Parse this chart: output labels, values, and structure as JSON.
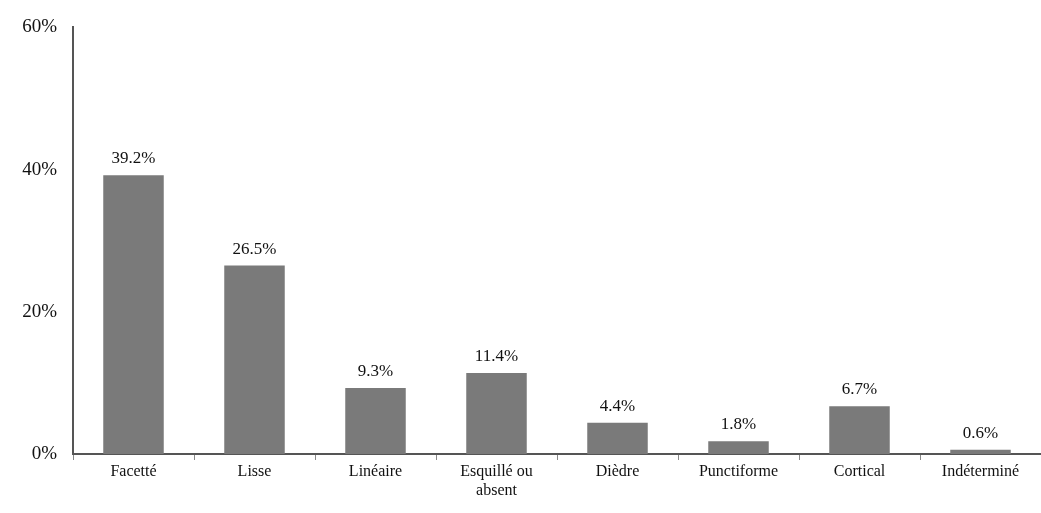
{
  "chart_data": {
    "type": "bar",
    "categories": [
      "Facetté",
      "Lisse",
      "Linéaire",
      "Esquillé ou absent",
      "Dièdre",
      "Punctiforme",
      "Cortical",
      "Indéterminé"
    ],
    "values": [
      39.2,
      26.5,
      9.3,
      11.4,
      4.4,
      1.8,
      6.7,
      0.6
    ],
    "value_labels": [
      "39.2%",
      "26.5%",
      "9.3%",
      "11.4%",
      "4.4%",
      "1.8%",
      "6.7%",
      "0.6%"
    ],
    "color": "#7a7a7a",
    "ylim": [
      0,
      60
    ],
    "yticks": [
      {
        "value": 0,
        "label": "0%"
      },
      {
        "value": 20,
        "label": "20%"
      },
      {
        "value": 40,
        "label": "40%"
      },
      {
        "value": 60,
        "label": "60%"
      }
    ],
    "grid": false,
    "legend": false
  }
}
